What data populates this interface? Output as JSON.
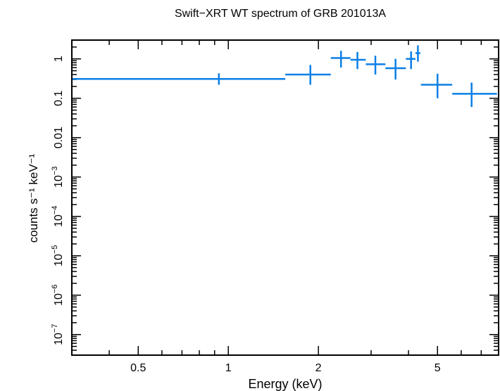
{
  "chart_data": {
    "type": "scatter",
    "title": "Swift−XRT WT spectrum of GRB 201013A",
    "xlabel": "Energy (keV)",
    "ylabel": "counts s⁻¹ keV⁻¹",
    "x_scale": "log",
    "y_scale": "log",
    "xlim": [
      0.3,
      8.0
    ],
    "ylim": [
      3e-08,
      3.0
    ],
    "x_ticks": [
      {
        "value": 0.5,
        "label": "0.5"
      },
      {
        "value": 1,
        "label": "1"
      },
      {
        "value": 2,
        "label": "2"
      },
      {
        "value": 5,
        "label": "5"
      }
    ],
    "y_ticks": [
      {
        "value": 1,
        "label": "1",
        "sup": ""
      },
      {
        "value": 0.1,
        "label": "0.1",
        "sup": ""
      },
      {
        "value": 0.01,
        "label": "0.01",
        "sup": ""
      },
      {
        "value": 0.001,
        "label": "10",
        "sup": "−3"
      },
      {
        "value": 0.0001,
        "label": "10",
        "sup": "−4"
      },
      {
        "value": 1e-05,
        "label": "10",
        "sup": "−5"
      },
      {
        "value": 1e-06,
        "label": "10",
        "sup": "−6"
      },
      {
        "value": 1e-07,
        "label": "10",
        "sup": "−7"
      }
    ],
    "series_color": "#0a7fe6",
    "points": [
      {
        "x": 0.93,
        "xlo": 0.3,
        "xhi": 1.55,
        "y": 0.31,
        "ylo": 0.22,
        "yhi": 0.43
      },
      {
        "x": 1.88,
        "xlo": 1.55,
        "xhi": 2.2,
        "y": 0.4,
        "ylo": 0.22,
        "yhi": 0.7
      },
      {
        "x": 2.38,
        "xlo": 2.2,
        "xhi": 2.56,
        "y": 1.05,
        "ylo": 0.6,
        "yhi": 1.6
      },
      {
        "x": 2.7,
        "xlo": 2.56,
        "xhi": 2.88,
        "y": 0.95,
        "ylo": 0.55,
        "yhi": 1.5
      },
      {
        "x": 3.1,
        "xlo": 2.88,
        "xhi": 3.35,
        "y": 0.73,
        "ylo": 0.4,
        "yhi": 1.2
      },
      {
        "x": 3.62,
        "xlo": 3.35,
        "xhi": 3.92,
        "y": 0.58,
        "ylo": 0.3,
        "yhi": 1.0
      },
      {
        "x": 4.08,
        "xlo": 3.92,
        "xhi": 4.22,
        "y": 1.0,
        "ylo": 0.55,
        "yhi": 1.55
      },
      {
        "x": 4.3,
        "xlo": 4.22,
        "xhi": 4.38,
        "y": 1.4,
        "ylo": 0.85,
        "yhi": 2.2
      },
      {
        "x": 5.0,
        "xlo": 4.4,
        "xhi": 5.6,
        "y": 0.22,
        "ylo": 0.1,
        "yhi": 0.42
      },
      {
        "x": 6.5,
        "xlo": 5.6,
        "xhi": 7.9,
        "y": 0.13,
        "ylo": 0.06,
        "yhi": 0.25
      }
    ]
  }
}
